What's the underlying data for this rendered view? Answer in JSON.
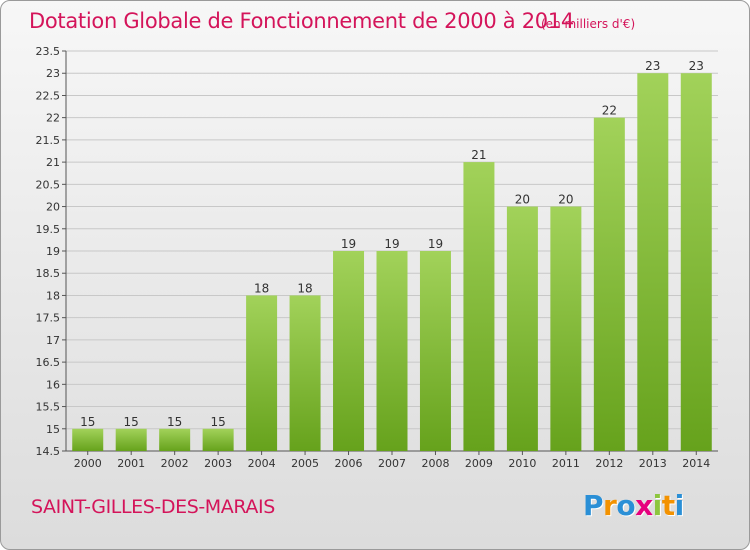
{
  "header": {
    "title": "Dotation Globale de Fonctionnement de 2000 à 2014",
    "unit": "(en milliers d'€)"
  },
  "footer": {
    "commune": "SAINT-GILLES-DES-MARAIS",
    "logo_text": "Proxiti",
    "logo_letters": [
      {
        "ch": "P",
        "color": "#2a8fd6"
      },
      {
        "ch": "r",
        "color": "#f39200"
      },
      {
        "ch": "o",
        "color": "#2a8fd6"
      },
      {
        "ch": "x",
        "color": "#e6007e"
      },
      {
        "ch": "i",
        "color": "#8dc63f"
      },
      {
        "ch": "t",
        "color": "#f39200"
      },
      {
        "ch": "i",
        "color": "#2a8fd6"
      }
    ]
  },
  "colors": {
    "title": "#d4145a",
    "bar_light": "#a2d25a",
    "bar_dark": "#66a21c",
    "grid": "#c8c8c8"
  },
  "chart_data": {
    "type": "bar",
    "title": "Dotation Globale de Fonctionnement de 2000 à 2014",
    "subtitle": "(en milliers d'€)",
    "xlabel": "",
    "ylabel": "",
    "categories": [
      "2000",
      "2001",
      "2002",
      "2003",
      "2004",
      "2005",
      "2006",
      "2007",
      "2008",
      "2009",
      "2010",
      "2011",
      "2012",
      "2013",
      "2014"
    ],
    "values": [
      15,
      15,
      15,
      15,
      18,
      18,
      19,
      19,
      19,
      21,
      20,
      20,
      22,
      23,
      23
    ],
    "data_labels": [
      "15",
      "15",
      "15",
      "15",
      "18",
      "18",
      "19",
      "19",
      "19",
      "21",
      "20",
      "20",
      "22",
      "23",
      "23"
    ],
    "ylim": [
      14.5,
      23.5
    ],
    "yticks": [
      "14.5",
      "15",
      "15.5",
      "16",
      "16.5",
      "17",
      "17.5",
      "18",
      "18.5",
      "19",
      "19.5",
      "20",
      "20.5",
      "21",
      "21.5",
      "22",
      "22.5",
      "23",
      "23.5"
    ],
    "grid": true,
    "legend": "none"
  }
}
